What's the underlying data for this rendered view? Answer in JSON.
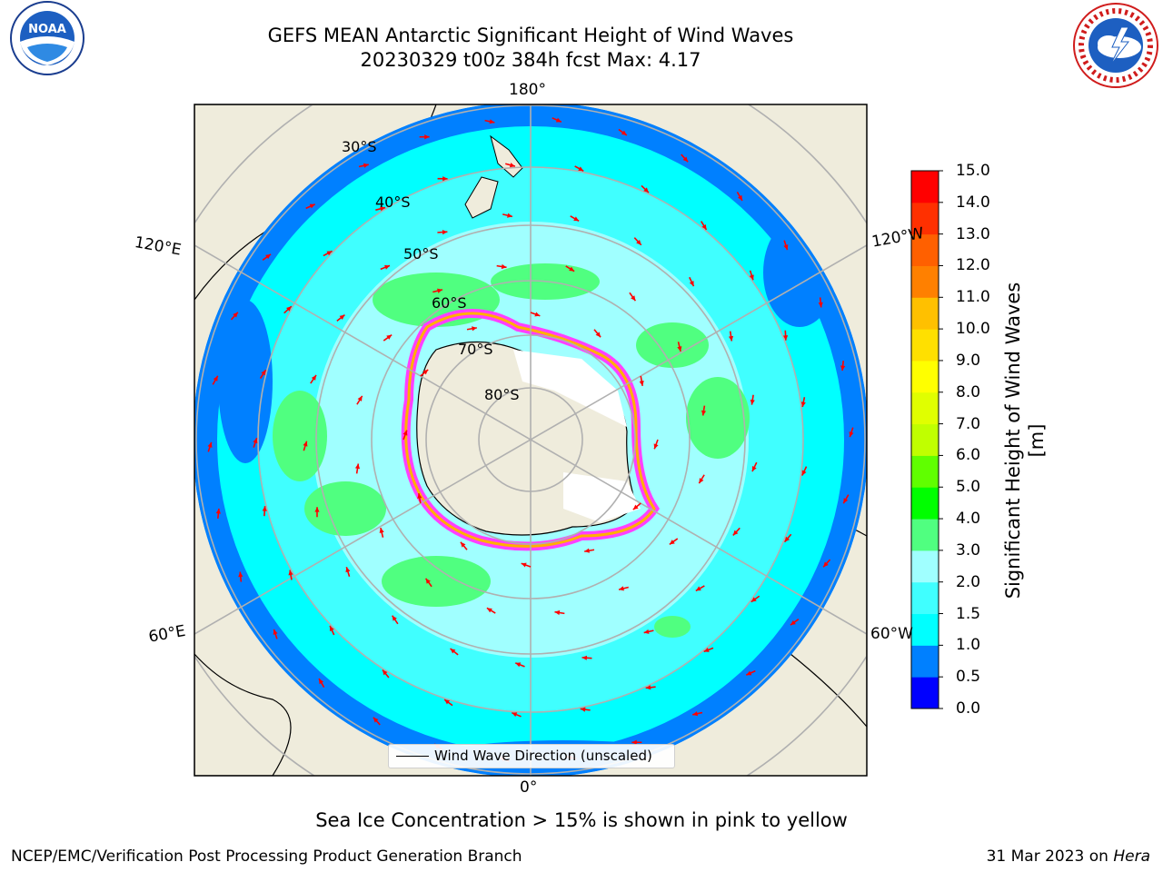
{
  "title": {
    "line1": "GEFS MEAN Antarctic Significant Height of Wind Waves",
    "line2": "20230329 t00z 384h fcst   Max: 4.17"
  },
  "logos": {
    "left": "NOAA",
    "left_ring_text": "NATIONAL OCEANIC AND ATMOSPHERIC ADMINISTRATION · U.S. DEPARTMENT OF COMMERCE",
    "right_ring_text": "NATIONAL WEATHER SERVICE"
  },
  "map": {
    "projection": "south-polar-stereographic",
    "longitude_labels": {
      "top": "180°",
      "bottom": "0°",
      "upper_left": "120°E",
      "upper_right": "120°W",
      "lower_left": "60°E",
      "lower_right": "60°W"
    },
    "latitude_labels": [
      "30°S",
      "40°S",
      "50°S",
      "60°S",
      "70°S",
      "80°S"
    ],
    "legend": {
      "label": "Wind Wave Direction (unscaled)"
    },
    "arrow_color": "#ff0000",
    "land_color": "#efecdc",
    "ice_colors": [
      "#ff40ff",
      "#ffb000"
    ]
  },
  "colorbar": {
    "title": "Significant Height of Wind Waves [m]",
    "ticks": [
      "0.0",
      "0.5",
      "1.0",
      "1.5",
      "2.0",
      "3.0",
      "4.0",
      "5.0",
      "6.0",
      "7.0",
      "8.0",
      "9.0",
      "10.0",
      "11.0",
      "12.0",
      "13.0",
      "14.0",
      "15.0"
    ],
    "colors": [
      "#0000ff",
      "#0080ff",
      "#00ffff",
      "#40ffff",
      "#a0ffff",
      "#50ff80",
      "#00ff00",
      "#60ff00",
      "#c0ff00",
      "#e0ff00",
      "#ffff00",
      "#ffe000",
      "#ffc000",
      "#ff8000",
      "#ff6000",
      "#ff3000",
      "#ff0000"
    ]
  },
  "note": "Sea Ice Concentration > 15% is shown in pink to yellow",
  "footer": {
    "left": "NCEP/EMC/Verification Post Processing Product Generation Branch",
    "right_date": "31 Mar 2023 on",
    "right_host": "Hera"
  }
}
